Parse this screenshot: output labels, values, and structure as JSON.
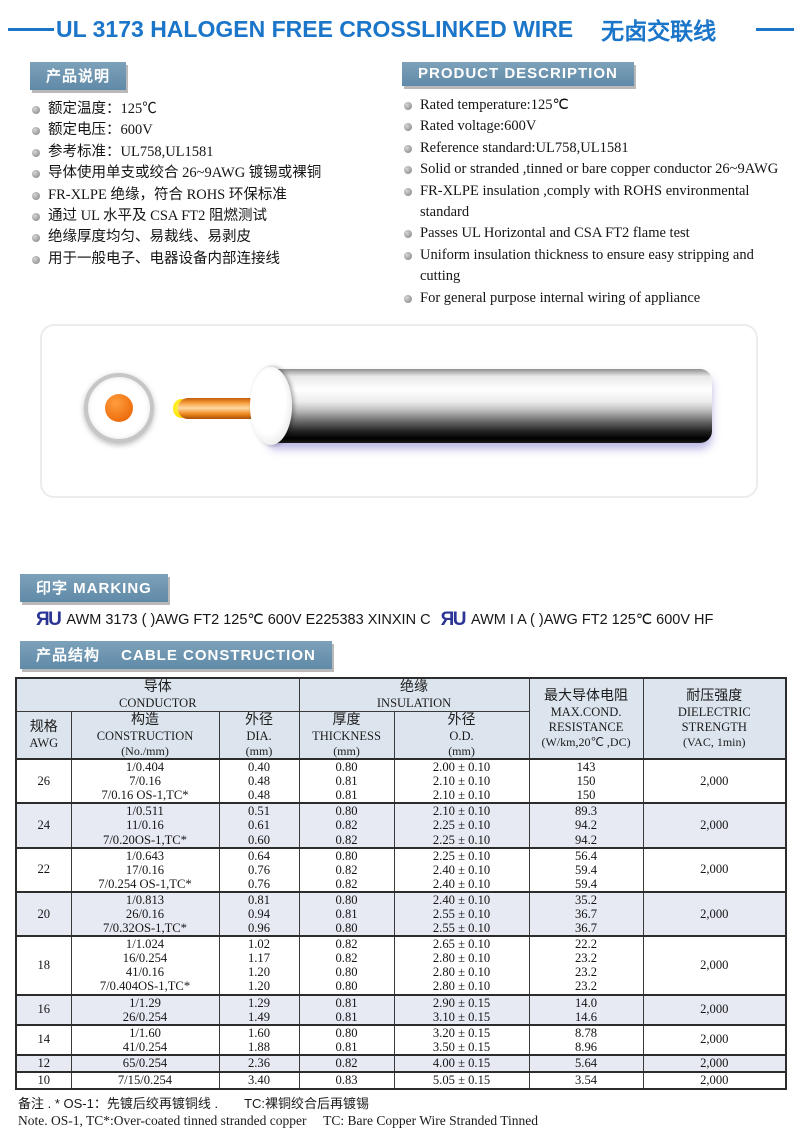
{
  "title": {
    "en": "UL 3173 HALOGEN FREE CROSSLINKED WIRE",
    "zh": "无卤交联线"
  },
  "colors": {
    "accent_blue": "#1b75c9",
    "section_header_bg": "#6590ad",
    "ul_mark_blue": "#2c3596",
    "table_header_bg": "#dce5ee",
    "row_shade": "#e7eaf3",
    "conductor_orange": "#ee7010"
  },
  "desc_zh": {
    "header": "产品说明",
    "items": [
      "额定温度：125℃",
      "额定电压：600V",
      "参考标准：UL758,UL1581",
      "导体使用单支或绞合 26~9AWG 镀锡或裸铜",
      "FR-XLPE 绝缘，符合 ROHS 环保标准",
      "通过 UL 水平及 CSA FT2 阻燃测试",
      "绝缘厚度均匀、易裁线、易剥皮",
      "用于一般电子、电器设备内部连接线"
    ]
  },
  "desc_en": {
    "header": "PRODUCT  DESCRIPTION",
    "items": [
      "Rated temperature:125℃",
      "Rated voltage:600V",
      "Reference standard:UL758,UL1581",
      "Solid or stranded ,tinned or bare copper conductor 26~9AWG",
      "FR-XLPE insulation ,comply with ROHS environmental standard",
      "Passes UL Horizontal and CSA FT2 flame test",
      "Uniform insulation thickness to ensure easy stripping and cutting",
      "For general purpose internal wiring of appliance"
    ]
  },
  "marking": {
    "header": "印字 MARKING",
    "ul_mark": "ЯU",
    "text1": "AWM 3173 (  )AWG FT2 125℃  600V E225383 XINXIN C",
    "text2": "AWM I A (  )AWG FT2 125℃  600V HF"
  },
  "construction": {
    "header": "产品结构　 CABLE CONSTRUCTION"
  },
  "table": {
    "conductor_zh": "导体",
    "conductor_en": "CONDUCTOR",
    "insulation_zh": "绝缘",
    "insulation_en": "INSULATION",
    "awg_lines": [
      "规格",
      "AWG"
    ],
    "construction_lines": [
      "构造",
      "CONSTRUCTION",
      "(No./mm)"
    ],
    "dia_lines": [
      "外径",
      "DIA.",
      "(mm)"
    ],
    "thickness_lines": [
      "厚度",
      "THICKNESS",
      "(mm)"
    ],
    "od_lines": [
      "外径",
      "O.D.",
      "(mm)"
    ],
    "resistance_lines": [
      "最大导体电阻",
      "MAX.COND.",
      "RESISTANCE",
      "(W/km,20℃ ,DC)"
    ],
    "dielectric_lines": [
      "耐压强度",
      "DIELECTRIC",
      "STRENGTH",
      "(VAC, 1min)"
    ],
    "groups": [
      {
        "awg": "26",
        "shaded": false,
        "dielectric": "2,000",
        "rows": [
          {
            "construction": "1/0.404",
            "dia": "0.40",
            "thickness": "0.80",
            "od": "2.00 ± 0.10",
            "resistance": "143"
          },
          {
            "construction": "7/0.16",
            "dia": "0.48",
            "thickness": "0.81",
            "od": "2.10 ± 0.10",
            "resistance": "150"
          },
          {
            "construction": "7/0.16 OS-1,TC*",
            "dia": "0.48",
            "thickness": "0.81",
            "od": "2.10 ± 0.10",
            "resistance": "150"
          }
        ]
      },
      {
        "awg": "24",
        "shaded": true,
        "dielectric": "2,000",
        "rows": [
          {
            "construction": "1/0.511",
            "dia": "0.51",
            "thickness": "0.80",
            "od": "2.10 ± 0.10",
            "resistance": "89.3"
          },
          {
            "construction": "11/0.16",
            "dia": "0.61",
            "thickness": "0.82",
            "od": "2.25 ± 0.10",
            "resistance": "94.2"
          },
          {
            "construction": "7/0.20OS-1,TC*",
            "dia": "0.60",
            "thickness": "0.82",
            "od": "2.25 ± 0.10",
            "resistance": "94.2"
          }
        ]
      },
      {
        "awg": "22",
        "shaded": false,
        "dielectric": "2,000",
        "rows": [
          {
            "construction": "1/0.643",
            "dia": "0.64",
            "thickness": "0.80",
            "od": "2.25 ± 0.10",
            "resistance": "56.4"
          },
          {
            "construction": "17/0.16",
            "dia": "0.76",
            "thickness": "0.82",
            "od": "2.40 ± 0.10",
            "resistance": "59.4"
          },
          {
            "construction": "7/0.254 OS-1,TC*",
            "dia": "0.76",
            "thickness": "0.82",
            "od": "2.40 ± 0.10",
            "resistance": "59.4"
          }
        ]
      },
      {
        "awg": "20",
        "shaded": true,
        "dielectric": "2,000",
        "rows": [
          {
            "construction": "1/0.813",
            "dia": "0.81",
            "thickness": "0.80",
            "od": "2.40 ± 0.10",
            "resistance": "35.2"
          },
          {
            "construction": "26/0.16",
            "dia": "0.94",
            "thickness": "0.81",
            "od": "2.55 ± 0.10",
            "resistance": "36.7"
          },
          {
            "construction": "7/0.32OS-1,TC*",
            "dia": "0.96",
            "thickness": "0.80",
            "od": "2.55 ± 0.10",
            "resistance": "36.7"
          }
        ]
      },
      {
        "awg": "18",
        "shaded": false,
        "dielectric": "2,000",
        "rows": [
          {
            "construction": "1/1.024",
            "dia": "1.02",
            "thickness": "0.82",
            "od": "2.65 ± 0.10",
            "resistance": "22.2"
          },
          {
            "construction": "16/0.254",
            "dia": "1.17",
            "thickness": "0.82",
            "od": "2.80 ± 0.10",
            "resistance": "23.2"
          },
          {
            "construction": "41/0.16",
            "dia": "1.20",
            "thickness": "0.80",
            "od": "2.80 ± 0.10",
            "resistance": "23.2"
          },
          {
            "construction": "7/0.404OS-1,TC*",
            "dia": "1.20",
            "thickness": "0.80",
            "od": "2.80 ± 0.10",
            "resistance": "23.2"
          }
        ]
      },
      {
        "awg": "16",
        "shaded": true,
        "dielectric": "2,000",
        "rows": [
          {
            "construction": "1/1.29",
            "dia": "1.29",
            "thickness": "0.81",
            "od": "2.90 ± 0.15",
            "resistance": "14.0"
          },
          {
            "construction": "26/0.254",
            "dia": "1.49",
            "thickness": "0.81",
            "od": "3.10 ± 0.15",
            "resistance": "14.6"
          }
        ]
      },
      {
        "awg": "14",
        "shaded": false,
        "dielectric": "2,000",
        "rows": [
          {
            "construction": "1/1.60",
            "dia": "1.60",
            "thickness": "0.80",
            "od": "3.20 ± 0.15",
            "resistance": "8.78"
          },
          {
            "construction": "41/0.254",
            "dia": "1.88",
            "thickness": "0.81",
            "od": "3.50 ± 0.15",
            "resistance": "8.96"
          }
        ]
      },
      {
        "awg": "12",
        "shaded": true,
        "dielectric": "2,000",
        "rows": [
          {
            "construction": "65/0.254",
            "dia": "2.36",
            "thickness": "0.82",
            "od": "4.00 ± 0.15",
            "resistance": "5.64"
          }
        ]
      },
      {
        "awg": "10",
        "shaded": false,
        "dielectric": "2,000",
        "rows": [
          {
            "construction": "7/15/0.254",
            "dia": "3.40",
            "thickness": "0.83",
            "od": "5.05 ± 0.15",
            "resistance": "3.54"
          }
        ]
      }
    ]
  },
  "notes": {
    "zh": "备注 . * OS-1：先镀后绞再镀铜线 .　　TC:裸铜绞合后再镀锡",
    "en": "Note. OS-1, TC*:Over-coated tinned stranded copper　 TC: Bare Copper Wire Stranded Tinned"
  }
}
